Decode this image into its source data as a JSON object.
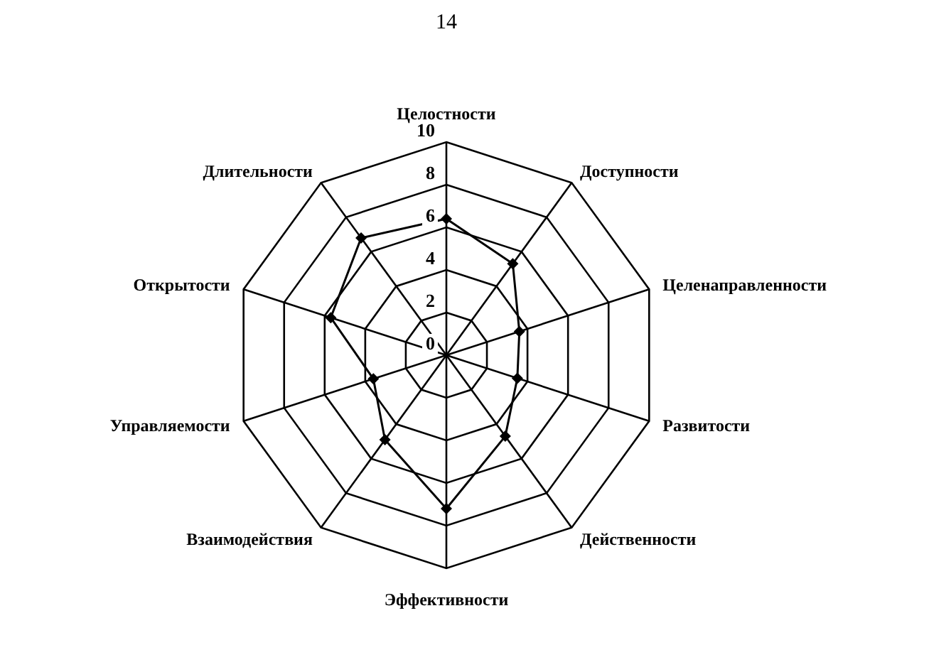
{
  "chart_data": {
    "type": "radar",
    "annotations": [
      "14"
    ],
    "categories": [
      "Целостности",
      "Доступности",
      "Целенаправленности",
      "Развитости",
      "Действенности",
      "Эффективности",
      "Взаимодействия",
      "Управляемости",
      "Открытости",
      "Длительности"
    ],
    "series": [
      {
        "color": "#000000",
        "values": [
          6.4,
          5.3,
          3.6,
          3.5,
          4.7,
          7.2,
          4.9,
          3.6,
          5.7,
          6.8
        ]
      }
    ],
    "ylim": [
      0,
      10
    ],
    "yticks": [
      0,
      2,
      4,
      6,
      8,
      10
    ],
    "grid": true,
    "marker": "diamond",
    "line_style": "solid"
  }
}
